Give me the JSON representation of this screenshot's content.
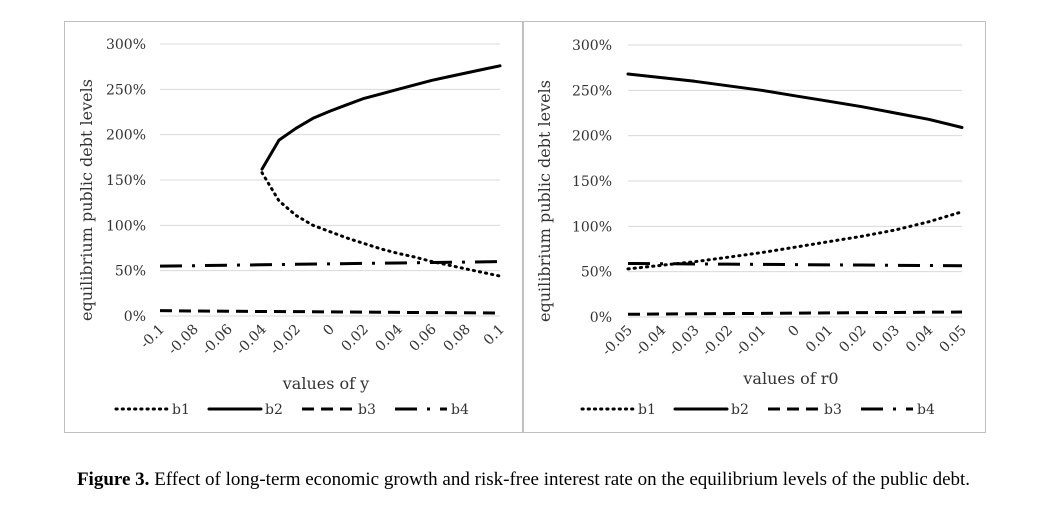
{
  "caption": {
    "label": "Figure 3.",
    "text": "Effect of long-term economic growth and risk-free interest rate on the equilibrium levels of the public debt."
  },
  "chart_data": [
    {
      "type": "line",
      "title": "",
      "xlabel": "values of y",
      "ylabel": "equilibrium public debt levels",
      "x_ticks": [
        "-0.1",
        "-0.08",
        "-0.06",
        "-0.04",
        "-0.02",
        "0",
        "0.02",
        "0.04",
        "0.06",
        "0.08",
        "0.1"
      ],
      "y_ticks": [
        "0%",
        "50%",
        "100%",
        "150%",
        "200%",
        "250%",
        "300%"
      ],
      "xlim": [
        -0.1,
        0.1
      ],
      "ylim": [
        0,
        3
      ],
      "grid": true,
      "legend_position": "bottom",
      "series": [
        {
          "name": "b1",
          "style": "dotted",
          "x": [
            -0.04,
            -0.03,
            -0.02,
            -0.01,
            0,
            0.01,
            0.02,
            0.03,
            0.04,
            0.05,
            0.06,
            0.07,
            0.08,
            0.09,
            0.1
          ],
          "y": [
            1.58,
            1.27,
            1.11,
            1.0,
            0.93,
            0.86,
            0.8,
            0.74,
            0.69,
            0.65,
            0.6,
            0.56,
            0.52,
            0.48,
            0.44
          ]
        },
        {
          "name": "b2",
          "style": "solid",
          "x": [
            -0.04,
            -0.03,
            -0.02,
            -0.01,
            0,
            0.01,
            0.02,
            0.03,
            0.04,
            0.05,
            0.06,
            0.07,
            0.08,
            0.09,
            0.1
          ],
          "y": [
            1.62,
            1.94,
            2.07,
            2.18,
            2.26,
            2.33,
            2.4,
            2.45,
            2.5,
            2.55,
            2.6,
            2.64,
            2.68,
            2.72,
            2.76
          ]
        },
        {
          "name": "b3",
          "style": "dashed",
          "x": [
            -0.1,
            -0.08,
            -0.06,
            -0.04,
            -0.02,
            0,
            0.02,
            0.04,
            0.06,
            0.08,
            0.1
          ],
          "y": [
            0.06,
            0.055,
            0.053,
            0.05,
            0.048,
            0.045,
            0.043,
            0.04,
            0.038,
            0.035,
            0.033
          ]
        },
        {
          "name": "b4",
          "style": "dashdot",
          "x": [
            -0.1,
            -0.08,
            -0.06,
            -0.04,
            -0.02,
            0,
            0.02,
            0.04,
            0.06,
            0.08,
            0.1
          ],
          "y": [
            0.55,
            0.555,
            0.56,
            0.565,
            0.57,
            0.575,
            0.58,
            0.585,
            0.59,
            0.595,
            0.6
          ]
        }
      ]
    },
    {
      "type": "line",
      "title": "",
      "xlabel": "values of r0",
      "ylabel": "equilibrium public debt levels",
      "x_ticks": [
        "-0.05",
        "-0.04",
        "-0.03",
        "-0.02",
        "-0.01",
        "0",
        "0.01",
        "0.02",
        "0.03",
        "0.04",
        "0.05"
      ],
      "y_ticks": [
        "0%",
        "50%",
        "100%",
        "150%",
        "200%",
        "250%",
        "300%"
      ],
      "xlim": [
        -0.05,
        0.05
      ],
      "ylim": [
        0,
        3
      ],
      "grid": true,
      "legend_position": "bottom",
      "series": [
        {
          "name": "b1",
          "style": "dotted",
          "x": [
            -0.05,
            -0.04,
            -0.03,
            -0.02,
            -0.01,
            0,
            0.01,
            0.02,
            0.03,
            0.04,
            0.05
          ],
          "y": [
            0.53,
            0.57,
            0.61,
            0.66,
            0.71,
            0.77,
            0.83,
            0.89,
            0.96,
            1.05,
            1.16
          ]
        },
        {
          "name": "b2",
          "style": "solid",
          "x": [
            -0.05,
            -0.04,
            -0.03,
            -0.02,
            -0.01,
            0,
            0.01,
            0.02,
            0.03,
            0.04,
            0.05
          ],
          "y": [
            2.68,
            2.64,
            2.6,
            2.55,
            2.5,
            2.44,
            2.38,
            2.32,
            2.25,
            2.18,
            2.09
          ]
        },
        {
          "name": "b3",
          "style": "dashed",
          "x": [
            -0.05,
            -0.04,
            -0.03,
            -0.02,
            -0.01,
            0,
            0.01,
            0.02,
            0.03,
            0.04,
            0.05
          ],
          "y": [
            0.03,
            0.033,
            0.035,
            0.038,
            0.04,
            0.043,
            0.045,
            0.048,
            0.05,
            0.053,
            0.055
          ]
        },
        {
          "name": "b4",
          "style": "dashdot",
          "x": [
            -0.05,
            -0.04,
            -0.03,
            -0.02,
            -0.01,
            0,
            0.01,
            0.02,
            0.03,
            0.04,
            0.05
          ],
          "y": [
            0.59,
            0.588,
            0.585,
            0.583,
            0.58,
            0.578,
            0.575,
            0.573,
            0.57,
            0.568,
            0.565
          ]
        }
      ]
    }
  ]
}
